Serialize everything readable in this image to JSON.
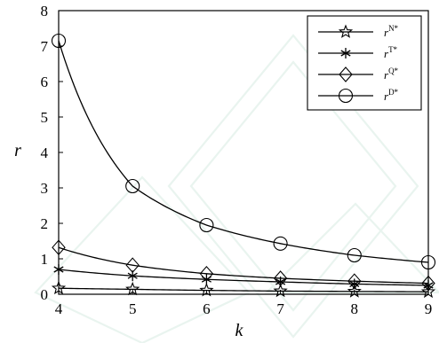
{
  "chart_data": {
    "type": "line",
    "xlabel": "k",
    "ylabel": "r",
    "xlim": [
      4,
      9
    ],
    "ylim": [
      0,
      8
    ],
    "x_ticks": [
      "4",
      "5",
      "6",
      "7",
      "8",
      "9"
    ],
    "y_ticks": [
      "0",
      "1",
      "2",
      "3",
      "4",
      "5",
      "6",
      "7",
      "8"
    ],
    "x": [
      4,
      5,
      6,
      7,
      8,
      9
    ],
    "series": [
      {
        "name": "r",
        "sup": "N*",
        "marker": "star",
        "values": [
          0.17,
          0.14,
          0.11,
          0.09,
          0.08,
          0.07
        ]
      },
      {
        "name": "r",
        "sup": "T*",
        "marker": "asterisk",
        "values": [
          0.7,
          0.52,
          0.42,
          0.35,
          0.29,
          0.25
        ]
      },
      {
        "name": "r",
        "sup": "Q*",
        "marker": "diamond",
        "values": [
          1.32,
          0.82,
          0.58,
          0.45,
          0.37,
          0.31
        ]
      },
      {
        "name": "r",
        "sup": "D*",
        "marker": "circle",
        "values": [
          7.15,
          3.05,
          1.95,
          1.43,
          1.1,
          0.9
        ]
      }
    ],
    "legend_position": "top-right",
    "grid": false
  }
}
